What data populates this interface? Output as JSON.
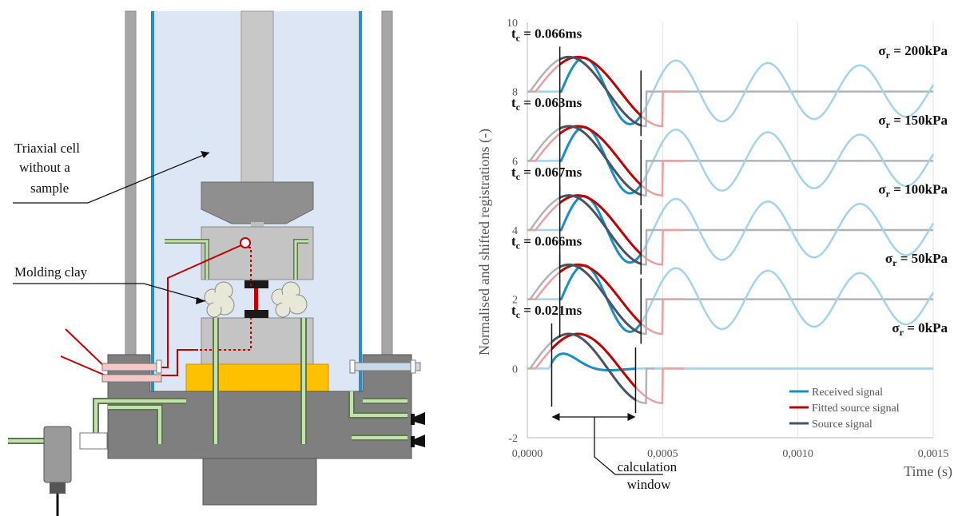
{
  "diagram": {
    "label_cell": [
      "Triaxial cell",
      "without a",
      "sample"
    ],
    "label_clay": "Molding clay"
  },
  "chart_data": {
    "type": "line",
    "xlabel": "Time (s)",
    "ylabel": "Normalised and shifted registrations (-)",
    "xlim": [
      0,
      0.0015
    ],
    "ylim": [
      -2,
      10
    ],
    "x_ticks": [
      "0,0000",
      "0,0005",
      "0,0010",
      "0,0015"
    ],
    "y_ticks": [
      "-2",
      "0",
      "2",
      "4",
      "6",
      "8",
      "10"
    ],
    "grid": "vertical",
    "legend_position": "bottom-right",
    "legend": [
      {
        "name": "Received signal",
        "color": "#1b8fc4"
      },
      {
        "name": "Fitted source signal",
        "color": "#c00000"
      },
      {
        "name": "Source signal",
        "color": "#4a5460"
      }
    ],
    "colors": {
      "received": "#1b8fc4",
      "fitted": "#c00000",
      "source": "#4a5460",
      "received_light": "#a4d3ea",
      "fitted_light": "#eaa0a0",
      "source_light": "#b0b4b8"
    },
    "tc_prefix": "t",
    "tc_sub": "c",
    "sigma_sub": "r",
    "traces": [
      {
        "offset": 8,
        "tc": " = 0.066ms",
        "sigma": " = 200kPa",
        "window": [
          0.00012,
          0.00042
        ]
      },
      {
        "offset": 6,
        "tc": " = 0.063ms",
        "sigma": " = 150kPa",
        "window": [
          0.00012,
          0.00042
        ]
      },
      {
        "offset": 4,
        "tc": " = 0.067ms",
        "sigma": " = 100kPa",
        "window": [
          0.00012,
          0.00042
        ]
      },
      {
        "offset": 2,
        "tc": " = 0.066ms",
        "sigma": " = 50kPa",
        "window": [
          0.00012,
          0.00042
        ]
      },
      {
        "offset": 0,
        "tc": " = 0.021ms",
        "sigma": " = 0kPa",
        "window": [
          9e-05,
          0.0004
        ]
      }
    ],
    "annotation": [
      "calculation",
      "window"
    ]
  }
}
